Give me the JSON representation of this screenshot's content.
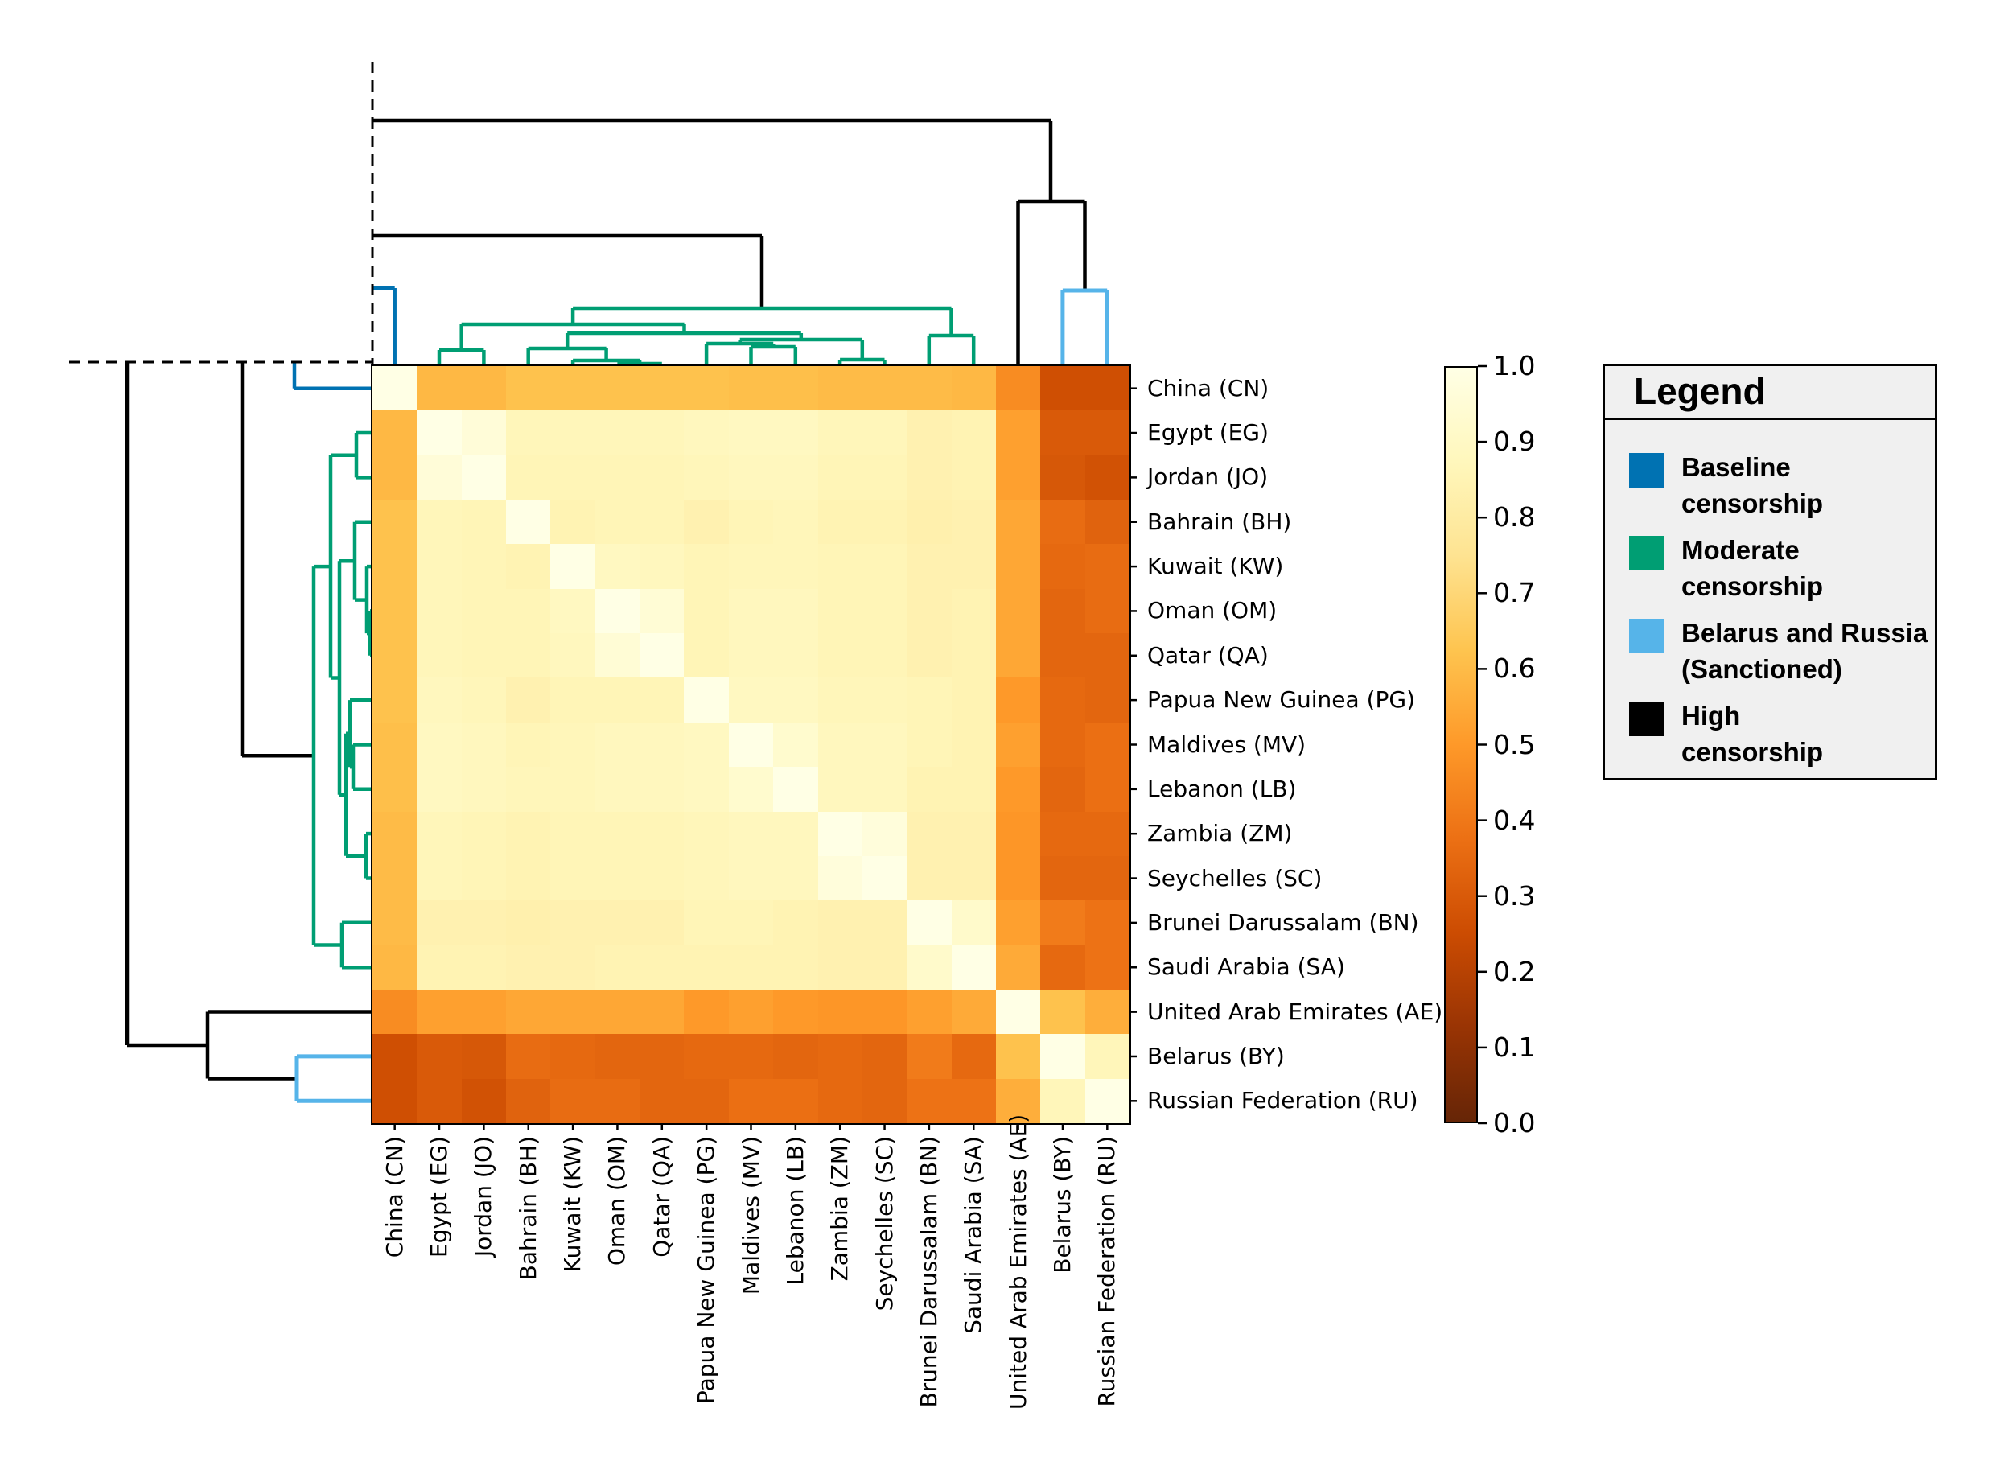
{
  "figure": {
    "kind": "clustered-heatmap",
    "background": "#ffffff"
  },
  "chart_data": {
    "type": "heatmap",
    "rows": [
      "China (CN)",
      "Egypt (EG)",
      "Jordan (JO)",
      "Bahrain (BH)",
      "Kuwait (KW)",
      "Oman (OM)",
      "Qatar (QA)",
      "Papua New Guinea (PG)",
      "Maldives (MV)",
      "Lebanon (LB)",
      "Zambia (ZM)",
      "Seychelles (SC)",
      "Brunei Darussalam (BN)",
      "Saudi Arabia (SA)",
      "United Arab Emirates (AE)",
      "Belarus (BY)",
      "Russian Federation (RU)"
    ],
    "cols": [
      "China (CN)",
      "Egypt (EG)",
      "Jordan (JO)",
      "Bahrain (BH)",
      "Kuwait (KW)",
      "Oman (OM)",
      "Qatar (QA)",
      "Papua New Guinea (PG)",
      "Maldives (MV)",
      "Lebanon (LB)",
      "Zambia (ZM)",
      "Seychelles (SC)",
      "Brunei Darussalam (BN)",
      "Saudi Arabia (SA)",
      "United Arab Emirates (AE)",
      "Belarus (BY)",
      "Russian Federation (RU)"
    ],
    "matrix": [
      [
        1.0,
        0.59,
        0.59,
        0.62,
        0.62,
        0.62,
        0.62,
        0.62,
        0.61,
        0.61,
        0.6,
        0.6,
        0.6,
        0.59,
        0.46,
        0.26,
        0.26
      ],
      [
        0.59,
        1.0,
        0.96,
        0.87,
        0.87,
        0.87,
        0.87,
        0.88,
        0.89,
        0.89,
        0.87,
        0.87,
        0.84,
        0.85,
        0.52,
        0.3,
        0.3
      ],
      [
        0.59,
        0.96,
        1.0,
        0.86,
        0.86,
        0.86,
        0.86,
        0.87,
        0.88,
        0.88,
        0.86,
        0.86,
        0.84,
        0.85,
        0.52,
        0.29,
        0.27
      ],
      [
        0.62,
        0.87,
        0.86,
        1.0,
        0.85,
        0.86,
        0.86,
        0.84,
        0.86,
        0.87,
        0.85,
        0.85,
        0.83,
        0.84,
        0.54,
        0.36,
        0.33
      ],
      [
        0.62,
        0.87,
        0.86,
        0.85,
        1.0,
        0.89,
        0.88,
        0.86,
        0.87,
        0.87,
        0.86,
        0.86,
        0.84,
        0.84,
        0.54,
        0.35,
        0.36
      ],
      [
        0.62,
        0.87,
        0.86,
        0.86,
        0.89,
        1.0,
        0.95,
        0.86,
        0.88,
        0.88,
        0.86,
        0.86,
        0.84,
        0.85,
        0.54,
        0.34,
        0.36
      ],
      [
        0.62,
        0.87,
        0.86,
        0.86,
        0.88,
        0.95,
        1.0,
        0.86,
        0.88,
        0.88,
        0.86,
        0.86,
        0.84,
        0.85,
        0.54,
        0.34,
        0.34
      ],
      [
        0.62,
        0.88,
        0.87,
        0.84,
        0.86,
        0.86,
        0.86,
        1.0,
        0.89,
        0.89,
        0.87,
        0.87,
        0.86,
        0.85,
        0.5,
        0.35,
        0.34
      ],
      [
        0.61,
        0.89,
        0.88,
        0.86,
        0.87,
        0.88,
        0.88,
        0.89,
        1.0,
        0.93,
        0.88,
        0.88,
        0.86,
        0.85,
        0.52,
        0.35,
        0.37
      ],
      [
        0.61,
        0.89,
        0.88,
        0.87,
        0.87,
        0.88,
        0.88,
        0.89,
        0.93,
        1.0,
        0.88,
        0.88,
        0.85,
        0.85,
        0.5,
        0.34,
        0.37
      ],
      [
        0.6,
        0.87,
        0.86,
        0.85,
        0.86,
        0.86,
        0.86,
        0.87,
        0.88,
        0.88,
        1.0,
        0.97,
        0.84,
        0.84,
        0.49,
        0.35,
        0.35
      ],
      [
        0.6,
        0.87,
        0.86,
        0.85,
        0.86,
        0.86,
        0.86,
        0.87,
        0.88,
        0.88,
        0.97,
        1.0,
        0.84,
        0.84,
        0.49,
        0.34,
        0.34
      ],
      [
        0.6,
        0.84,
        0.84,
        0.83,
        0.84,
        0.84,
        0.84,
        0.86,
        0.86,
        0.85,
        0.84,
        0.84,
        1.0,
        0.92,
        0.52,
        0.41,
        0.38
      ],
      [
        0.59,
        0.85,
        0.85,
        0.84,
        0.84,
        0.85,
        0.85,
        0.85,
        0.85,
        0.85,
        0.84,
        0.84,
        0.92,
        1.0,
        0.55,
        0.35,
        0.38
      ],
      [
        0.46,
        0.52,
        0.52,
        0.54,
        0.54,
        0.54,
        0.54,
        0.5,
        0.52,
        0.5,
        0.49,
        0.49,
        0.52,
        0.55,
        1.0,
        0.62,
        0.56
      ],
      [
        0.26,
        0.3,
        0.29,
        0.36,
        0.35,
        0.34,
        0.34,
        0.35,
        0.35,
        0.34,
        0.35,
        0.34,
        0.41,
        0.35,
        0.62,
        1.0,
        0.87
      ],
      [
        0.26,
        0.3,
        0.27,
        0.33,
        0.36,
        0.36,
        0.34,
        0.34,
        0.37,
        0.37,
        0.35,
        0.34,
        0.38,
        0.38,
        0.56,
        0.87,
        1.0
      ]
    ],
    "value_range": [
      0,
      1
    ],
    "colormap": {
      "name": "YlOrBr_r",
      "anchors": [
        "#ffffe5",
        "#fff7bc",
        "#fee391",
        "#fec44f",
        "#fe9929",
        "#ec7014",
        "#cc4c02",
        "#993404",
        "#662506"
      ]
    },
    "colorbar": {
      "tick_labels": [
        "1.0",
        "0.9",
        "0.8",
        "0.7",
        "0.6",
        "0.5",
        "0.4",
        "0.3",
        "0.2",
        "0.1",
        "0.0"
      ]
    },
    "legend": {
      "title": "Legend",
      "items": [
        {
          "name": "baseline-censorship",
          "color": "#0072B2",
          "lines": [
            "Baseline",
            "censorship"
          ]
        },
        {
          "name": "moderate-censorship",
          "color": "#009E73",
          "lines": [
            "Moderate",
            "censorship"
          ]
        },
        {
          "name": "belarus-russia-sanctioned",
          "color": "#56B4E9",
          "lines": [
            "Belarus and Russia",
            "(Sanctioned)"
          ]
        },
        {
          "name": "high-censorship",
          "color": "#000000",
          "lines": [
            "High",
            "censorship"
          ]
        }
      ]
    },
    "cluster_colors": {
      "black": "#000000",
      "green": "#009E73",
      "blue": "#0072B2",
      "skyblue": "#56B4E9"
    },
    "dendrogram_top": {
      "black": [
        [
          463,
          150,
          1306,
          150
        ],
        [
          1306,
          150,
          1306,
          250
        ],
        [
          1265.5,
          250,
          1348.5,
          250
        ],
        [
          1265.5,
          250,
          1265.5,
          455
        ],
        [
          1348.5,
          250,
          1348.5,
          361
        ],
        [
          463,
          293,
          947,
          293
        ],
        [
          947,
          293,
          947,
          383
        ]
      ],
      "skyblue": [
        [
          1320.9,
          361,
          1376.2,
          361
        ],
        [
          1320.9,
          361,
          1320.9,
          455
        ],
        [
          1376.2,
          361,
          1376.2,
          455
        ]
      ],
      "blue": [
        [
          463,
          358,
          490.7,
          358
        ],
        [
          490.7,
          358,
          490.7,
          455
        ]
      ],
      "green": [
        [
          546,
          435,
          601.4,
          435
        ],
        [
          546,
          435,
          546,
          455
        ],
        [
          601.4,
          435,
          601.4,
          455
        ],
        [
          767.4,
          452,
          822.8,
          452
        ],
        [
          767.4,
          452,
          767.4,
          455
        ],
        [
          822.8,
          452,
          822.8,
          455
        ],
        [
          712.1,
          448,
          795.1,
          448
        ],
        [
          712.1,
          448,
          712.1,
          455
        ],
        [
          795.1,
          448,
          795.1,
          452
        ],
        [
          656.7,
          433,
          753.6,
          433
        ],
        [
          656.7,
          433,
          656.7,
          455
        ],
        [
          753.6,
          433,
          753.6,
          448
        ],
        [
          933.5,
          431,
          988.8,
          431
        ],
        [
          933.5,
          431,
          933.5,
          455
        ],
        [
          988.8,
          431,
          988.8,
          455
        ],
        [
          878.1,
          427,
          961.2,
          427
        ],
        [
          878.1,
          427,
          878.1,
          455
        ],
        [
          961.2,
          427,
          961.2,
          431
        ],
        [
          1044.1,
          447,
          1099.5,
          447
        ],
        [
          1044.1,
          447,
          1044.1,
          455
        ],
        [
          1099.5,
          447,
          1099.5,
          455
        ],
        [
          919.7,
          422,
          1071.8,
          422
        ],
        [
          919.7,
          422,
          919.7,
          427
        ],
        [
          1071.8,
          422,
          1071.8,
          447
        ],
        [
          705.2,
          414,
          995.8,
          414
        ],
        [
          705.2,
          414,
          705.2,
          433
        ],
        [
          995.8,
          414,
          995.8,
          422
        ],
        [
          573.7,
          403,
          850.5,
          403
        ],
        [
          573.7,
          403,
          573.7,
          435
        ],
        [
          850.5,
          403,
          850.5,
          414
        ],
        [
          1154.8,
          417,
          1210.2,
          417
        ],
        [
          1154.8,
          417,
          1154.8,
          455
        ],
        [
          1210.2,
          417,
          1210.2,
          455
        ],
        [
          712.1,
          383,
          1182.5,
          383
        ],
        [
          712.1,
          383,
          712.1,
          403
        ],
        [
          1182.5,
          383,
          1182.5,
          417
        ]
      ],
      "dashed": [
        [
          463,
          77,
          463,
          455
        ]
      ]
    },
    "dendrogram_left": {
      "black": [
        [
          158,
          450,
          158,
          1299
        ],
        [
          158,
          1299,
          258,
          1299
        ],
        [
          258,
          1257.5,
          258,
          1340.5
        ],
        [
          258,
          1257.5,
          463,
          1257.5
        ],
        [
          258,
          1340.5,
          369,
          1340.5
        ],
        [
          301,
          450,
          301,
          939.3
        ],
        [
          301,
          939.3,
          390,
          939.3
        ]
      ],
      "skyblue": [
        [
          369,
          1312.9,
          369,
          1368.2
        ],
        [
          369,
          1312.9,
          463,
          1312.9
        ],
        [
          369,
          1368.2,
          463,
          1368.2
        ]
      ],
      "blue": [
        [
          366,
          450,
          366,
          482.7
        ],
        [
          366,
          482.7,
          463,
          482.7
        ]
      ],
      "green": [
        [
          443,
          538,
          443,
          593.4
        ],
        [
          443,
          538,
          463,
          538
        ],
        [
          443,
          593.4,
          463,
          593.4
        ],
        [
          460,
          759.4,
          460,
          814.8
        ],
        [
          460,
          759.4,
          463,
          759.4
        ],
        [
          460,
          814.8,
          463,
          814.8
        ],
        [
          456,
          704.1,
          456,
          787.1
        ],
        [
          456,
          704.1,
          463,
          704.1
        ],
        [
          456,
          787.1,
          460,
          787.1
        ],
        [
          441,
          648.7,
          441,
          745.6
        ],
        [
          441,
          648.7,
          463,
          648.7
        ],
        [
          441,
          745.6,
          456,
          745.6
        ],
        [
          439,
          925.5,
          439,
          980.8
        ],
        [
          439,
          925.5,
          463,
          925.5
        ],
        [
          439,
          980.8,
          463,
          980.8
        ],
        [
          435,
          870.1,
          435,
          953.2
        ],
        [
          435,
          870.1,
          463,
          870.1
        ],
        [
          435,
          953.2,
          439,
          953.2
        ],
        [
          455,
          1036.1,
          455,
          1091.5
        ],
        [
          455,
          1036.1,
          463,
          1036.1
        ],
        [
          455,
          1091.5,
          463,
          1091.5
        ],
        [
          430,
          911.7,
          430,
          1063.8
        ],
        [
          430,
          911.7,
          435,
          911.7
        ],
        [
          430,
          1063.8,
          455,
          1063.8
        ],
        [
          422,
          697.2,
          422,
          987.8
        ],
        [
          422,
          697.2,
          441,
          697.2
        ],
        [
          422,
          987.8,
          430,
          987.8
        ],
        [
          411,
          565.7,
          411,
          842.5
        ],
        [
          411,
          565.7,
          443,
          565.7
        ],
        [
          411,
          842.5,
          422,
          842.5
        ],
        [
          425,
          1146.8,
          425,
          1202.2
        ],
        [
          425,
          1146.8,
          463,
          1146.8
        ],
        [
          425,
          1202.2,
          463,
          1202.2
        ],
        [
          390,
          704.1,
          390,
          1174.5
        ],
        [
          390,
          704.1,
          411,
          704.1
        ],
        [
          390,
          1174.5,
          425,
          1174.5
        ]
      ],
      "dashed": [
        [
          86,
          450,
          463,
          450
        ]
      ]
    }
  }
}
